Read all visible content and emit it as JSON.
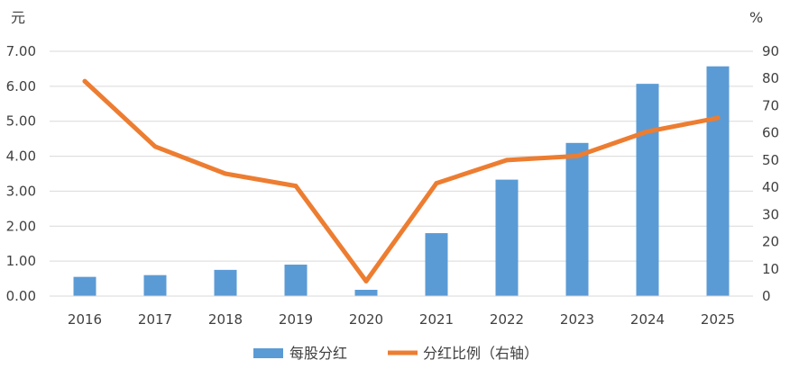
{
  "chart_data": {
    "type": "bar+line",
    "categories": [
      "2016",
      "2017",
      "2018",
      "2019",
      "2020",
      "2021",
      "2022",
      "2023",
      "2024",
      "2025"
    ],
    "series": [
      {
        "name": "每股分红",
        "type": "bar",
        "axis": "left",
        "color": "#5B9BD5",
        "values": [
          0.55,
          0.6,
          0.75,
          0.9,
          0.18,
          1.8,
          3.33,
          4.38,
          6.07,
          6.57
        ]
      },
      {
        "name": "分红比例（右轴）",
        "type": "line",
        "axis": "right",
        "color": "#ED7D31",
        "values": [
          79,
          55,
          45,
          40.5,
          5.5,
          41.5,
          50,
          51.5,
          60.5,
          65.5
        ]
      }
    ],
    "y_left": {
      "unit": "元",
      "ylim": [
        0,
        7
      ],
      "ticks": [
        "0.00",
        "1.00",
        "2.00",
        "3.00",
        "4.00",
        "5.00",
        "6.00",
        "7.00"
      ]
    },
    "y_right": {
      "unit": "%",
      "ylim": [
        0,
        90
      ],
      "ticks": [
        "0",
        "10",
        "20",
        "30",
        "40",
        "50",
        "60",
        "70",
        "80",
        "90"
      ]
    },
    "grid": true,
    "legend_position": "bottom-center"
  }
}
